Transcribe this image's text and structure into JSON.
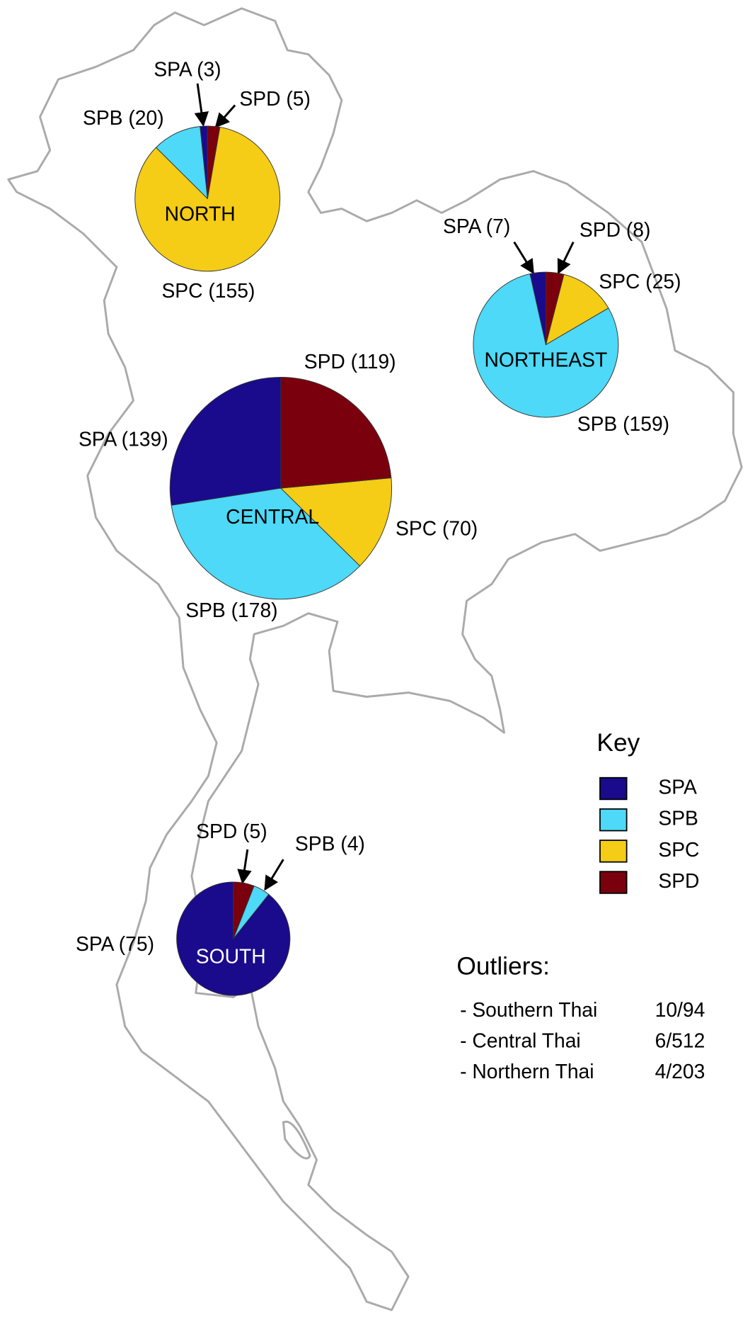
{
  "legend": {
    "title": "Key",
    "series": [
      {
        "name": "SPA",
        "color": "#1a0a8c"
      },
      {
        "name": "SPB",
        "color": "#4dd9f7"
      },
      {
        "name": "SPC",
        "color": "#f5cc16"
      },
      {
        "name": "SPD",
        "color": "#7a000e"
      }
    ]
  },
  "chart_data": [
    {
      "type": "pie",
      "title": "NORTH",
      "values": [
        3,
        20,
        155,
        5
      ],
      "value_labels": [
        "SPA (3)",
        "SPB (20)",
        "SPC (155)",
        "SPD (5)"
      ]
    },
    {
      "type": "pie",
      "title": "NORTHEAST",
      "values": [
        7,
        159,
        25,
        8
      ],
      "value_labels": [
        "SPA (7)",
        "SPB (159)",
        "SPC (25)",
        "SPD (8)"
      ]
    },
    {
      "type": "pie",
      "title": "CENTRAL",
      "values": [
        139,
        178,
        70,
        119
      ],
      "value_labels": [
        "SPA (139)",
        "SPB (178)",
        "SPC (70)",
        "SPD (119)"
      ]
    },
    {
      "type": "pie",
      "title": "SOUTH",
      "values": [
        75,
        4,
        0,
        5
      ],
      "value_labels": [
        "SPA (75)",
        "SPB (4)",
        null,
        "SPD (5)"
      ]
    }
  ],
  "outliers": {
    "title": "Outliers:",
    "rows": [
      [
        "- Southern Thai",
        "10/94"
      ],
      [
        "- Central Thai",
        "6/512"
      ],
      [
        "- Northern Thai",
        "4/203"
      ]
    ]
  }
}
